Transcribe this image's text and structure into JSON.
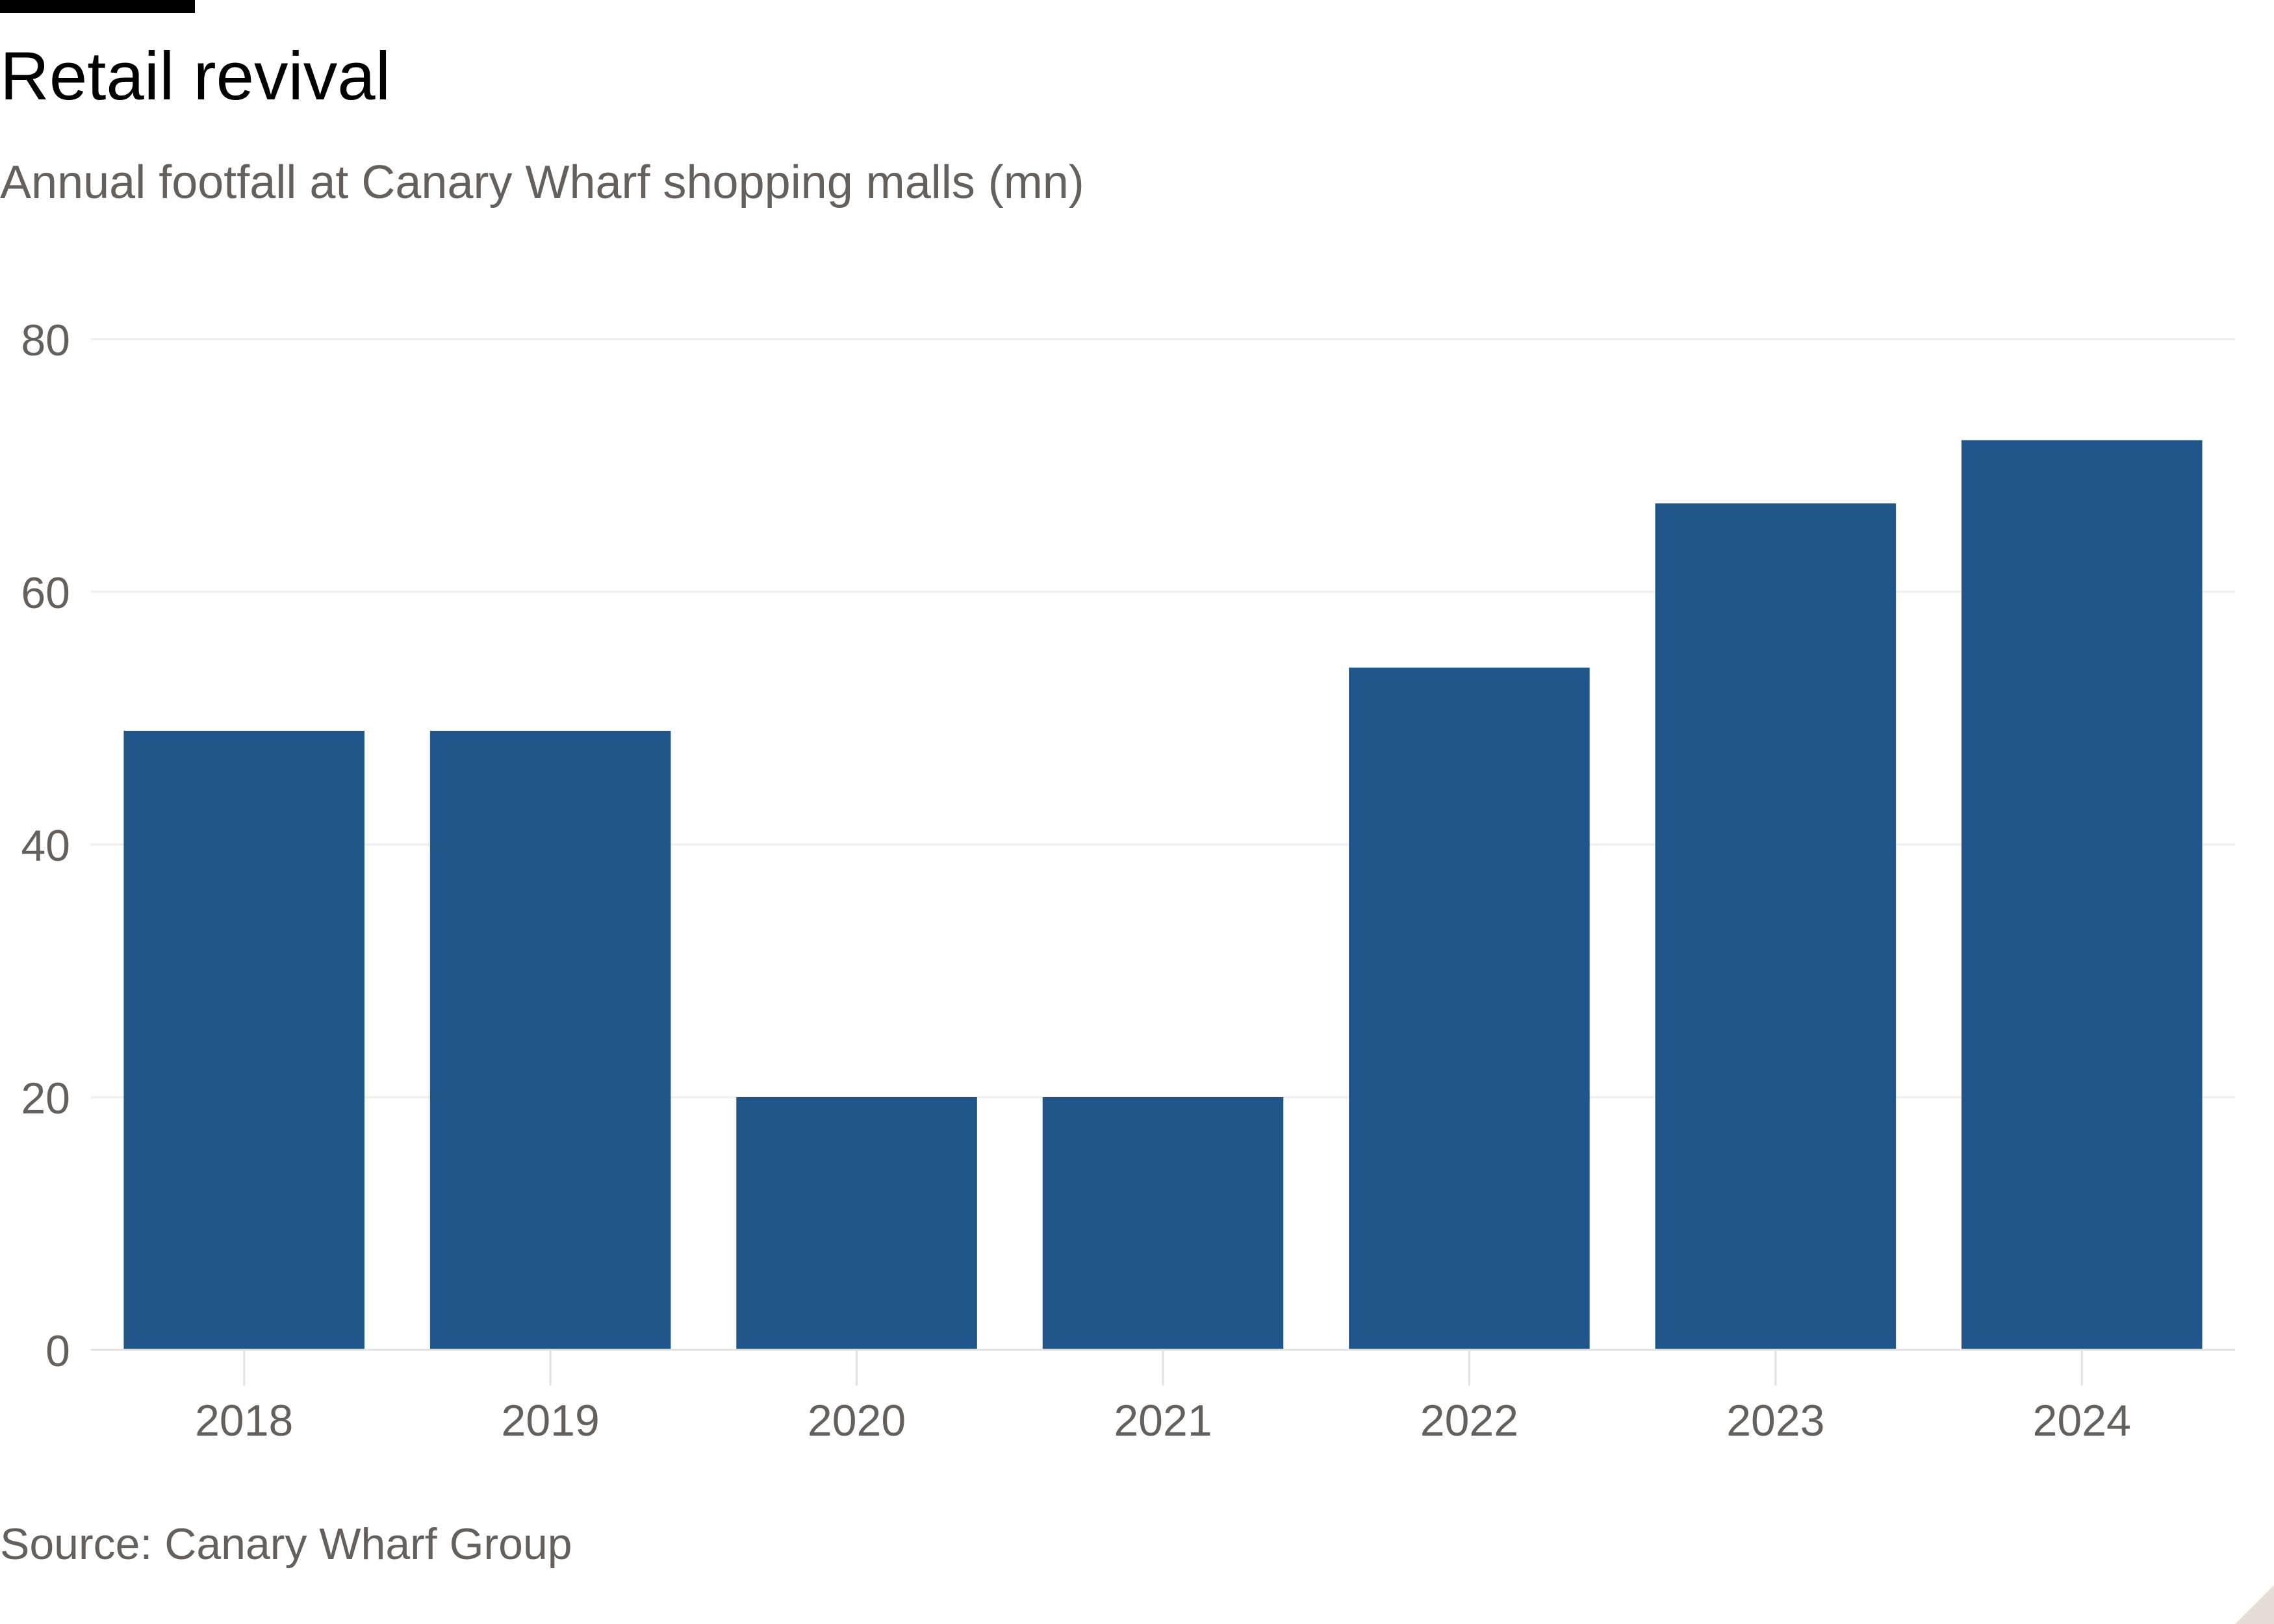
{
  "title": "Retail revival",
  "subtitle": "Annual footfall at Canary Wharf shopping malls (mn)",
  "source": "Source: Canary Wharf Group",
  "colors": {
    "bar": "#21568a",
    "grid": "#efeeec",
    "tick_text": "#66605c",
    "axis_line": "#e4e1de"
  },
  "chart_data": {
    "type": "bar",
    "categories": [
      "2018",
      "2019",
      "2020",
      "2021",
      "2022",
      "2023",
      "2024"
    ],
    "values": [
      49,
      49,
      20,
      20,
      54,
      67,
      72
    ],
    "title": "Retail revival",
    "subtitle": "Annual footfall at Canary Wharf shopping malls (mn)",
    "xlabel": "",
    "ylabel": "",
    "ylim": [
      0,
      80
    ],
    "yticks": [
      0,
      20,
      40,
      60,
      80
    ],
    "grid": true,
    "legend": "none"
  }
}
